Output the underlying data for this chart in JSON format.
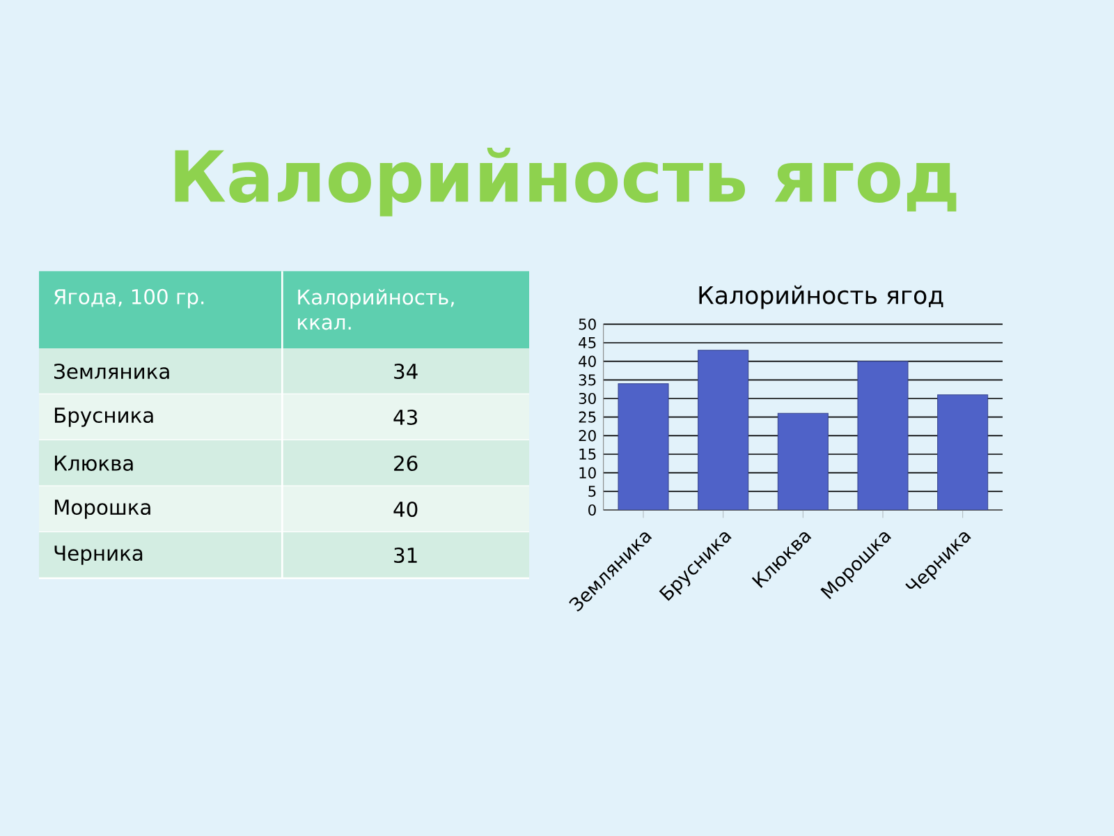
{
  "chart_data": {
    "type": "bar",
    "title": "Калорийность ягод",
    "subtitle": "Калорийность ягод",
    "annotations": [
      "Ягода, 100 гр.",
      "Калорийность, ккал.",
      "34",
      "43",
      "26",
      "40",
      "31"
    ],
    "categories": [
      "Земляника",
      "Брусника",
      "Клюква",
      "Морошка",
      "Черника"
    ],
    "values": [
      34,
      43,
      26,
      40,
      31
    ],
    "color": "#4f62c8",
    "ylim": [
      0,
      50
    ],
    "yticks": [
      0,
      5,
      10,
      15,
      20,
      25,
      30,
      35,
      40,
      45,
      50
    ],
    "grid": "y"
  }
}
